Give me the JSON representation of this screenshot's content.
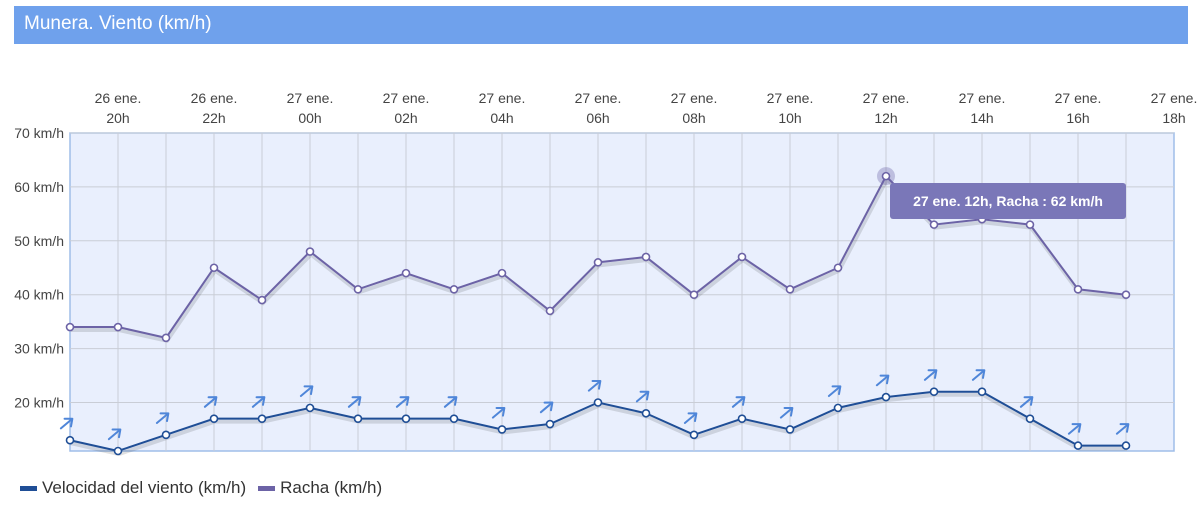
{
  "header": {
    "title": "Munera. Viento (km/h)"
  },
  "colors": {
    "header_bg": "#6fa1ec",
    "plot_bg": "#e9effd",
    "velocidad": "#1f4e96",
    "racha": "#6c63a6",
    "arrow": "#4f86d9",
    "tooltip_bg": "#7a77b8"
  },
  "tooltip": {
    "text": "27 ene. 12h, Racha : 62 km/h"
  },
  "chart_data": {
    "type": "line",
    "title": "Munera. Viento (km/h)",
    "x_tick_labels": [
      [
        "26 ene.",
        "20h"
      ],
      [
        "26 ene.",
        "22h"
      ],
      [
        "27 ene.",
        "00h"
      ],
      [
        "27 ene.",
        "02h"
      ],
      [
        "27 ene.",
        "04h"
      ],
      [
        "27 ene.",
        "06h"
      ],
      [
        "27 ene.",
        "08h"
      ],
      [
        "27 ene.",
        "10h"
      ],
      [
        "27 ene.",
        "12h"
      ],
      [
        "27 ene.",
        "14h"
      ],
      [
        "27 ene.",
        "16h"
      ],
      [
        "27 ene.",
        "18h"
      ]
    ],
    "x": [
      "26 ene. 19h",
      "26 ene. 20h",
      "26 ene. 21h",
      "26 ene. 22h",
      "26 ene. 23h",
      "27 ene. 00h",
      "27 ene. 01h",
      "27 ene. 02h",
      "27 ene. 03h",
      "27 ene. 04h",
      "27 ene. 05h",
      "27 ene. 06h",
      "27 ene. 07h",
      "27 ene. 08h",
      "27 ene. 09h",
      "27 ene. 10h",
      "27 ene. 11h",
      "27 ene. 12h",
      "27 ene. 13h",
      "27 ene. 14h",
      "27 ene. 15h",
      "27 ene. 16h",
      "27 ene. 17h"
    ],
    "y_ticks": [
      "20 km/h",
      "30 km/h",
      "40 km/h",
      "50 km/h",
      "60 km/h",
      "70 km/h"
    ],
    "ylim": [
      11,
      70
    ],
    "grid": true,
    "legend_position": "bottom-left",
    "series": [
      {
        "name": "Velocidad del viento (km/h)",
        "values": [
          13,
          11,
          14,
          17,
          17,
          19,
          17,
          17,
          17,
          15,
          16,
          20,
          18,
          14,
          17,
          15,
          19,
          21,
          22,
          22,
          17,
          12,
          12
        ]
      },
      {
        "name": "Racha (km/h)",
        "values": [
          34,
          34,
          32,
          45,
          39,
          48,
          41,
          44,
          41,
          44,
          37,
          46,
          47,
          40,
          47,
          41,
          45,
          62,
          53,
          54,
          53,
          41,
          40
        ]
      }
    ],
    "highlight": {
      "series": "Racha (km/h)",
      "x": "27 ene. 12h",
      "value": 62
    }
  }
}
